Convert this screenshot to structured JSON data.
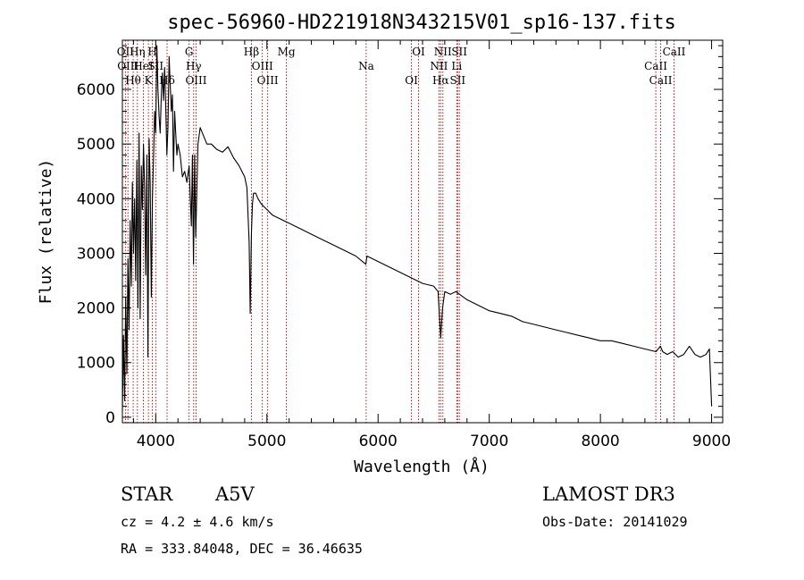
{
  "chart_data": {
    "type": "line",
    "title": "spec-56960-HD221918N343215V01_sp16-137.fits",
    "xlabel": "Wavelength (Å)",
    "ylabel": "Flux (relative)",
    "xlim": [
      3700,
      9100
    ],
    "ylim": [
      -100,
      6900
    ],
    "x_ticks": [
      4000,
      5000,
      6000,
      7000,
      8000,
      9000
    ],
    "y_ticks": [
      0,
      1000,
      2000,
      3000,
      4000,
      5000,
      6000
    ],
    "x_tick_labels": [
      "4000",
      "5000",
      "6000",
      "7000",
      "8000",
      "9000"
    ],
    "y_tick_labels": [
      "0",
      "1000",
      "2000",
      "3000",
      "4000",
      "5000",
      "6000"
    ],
    "grid": false,
    "series": [
      {
        "name": "spectrum",
        "x": [
          3700,
          3710,
          3720,
          3730,
          3740,
          3750,
          3760,
          3770,
          3780,
          3790,
          3800,
          3810,
          3820,
          3830,
          3840,
          3850,
          3860,
          3870,
          3880,
          3890,
          3900,
          3910,
          3920,
          3930,
          3940,
          3950,
          3960,
          3970,
          3980,
          3990,
          4000,
          4010,
          4020,
          4030,
          4040,
          4050,
          4060,
          4070,
          4080,
          4090,
          4100,
          4110,
          4120,
          4130,
          4140,
          4150,
          4160,
          4170,
          4180,
          4190,
          4200,
          4220,
          4240,
          4260,
          4280,
          4300,
          4320,
          4330,
          4340,
          4350,
          4360,
          4380,
          4400,
          4420,
          4440,
          4460,
          4480,
          4500,
          4550,
          4600,
          4650,
          4700,
          4750,
          4800,
          4820,
          4840,
          4850,
          4861,
          4870,
          4880,
          4900,
          4920,
          4950,
          5000,
          5050,
          5100,
          5150,
          5200,
          5250,
          5300,
          5400,
          5500,
          5600,
          5700,
          5800,
          5890,
          5900,
          6000,
          6100,
          6200,
          6300,
          6400,
          6500,
          6540,
          6563,
          6580,
          6600,
          6650,
          6700,
          6800,
          6900,
          7000,
          7100,
          7200,
          7300,
          7400,
          7500,
          7600,
          7700,
          7800,
          7900,
          8000,
          8100,
          8200,
          8300,
          8400,
          8500,
          8540,
          8560,
          8600,
          8650,
          8700,
          8750,
          8800,
          8850,
          8900,
          8950,
          8980,
          9000
        ],
        "values": [
          100,
          1500,
          300,
          2200,
          800,
          2900,
          1600,
          3600,
          2400,
          4300,
          3000,
          4000,
          2500,
          4700,
          2000,
          5200,
          1800,
          4600,
          3800,
          5000,
          4200,
          2600,
          4800,
          1100,
          5100,
          4300,
          2200,
          4000,
          4700,
          5600,
          5200,
          6800,
          6000,
          5500,
          5200,
          5900,
          6300,
          5800,
          6400,
          5700,
          4800,
          5300,
          6600,
          6100,
          5600,
          5900,
          4500,
          5600,
          5200,
          4800,
          5000,
          4800,
          4400,
          4500,
          4300,
          4600,
          3500,
          4800,
          2800,
          4800,
          3300,
          5000,
          5300,
          5200,
          5100,
          5000,
          5000,
          5000,
          4900,
          4850,
          4950,
          4750,
          4600,
          4400,
          4200,
          3200,
          1900,
          3400,
          3900,
          4100,
          4100,
          4000,
          3900,
          3800,
          3700,
          3650,
          3600,
          3550,
          3500,
          3450,
          3350,
          3250,
          3150,
          3050,
          2950,
          2800,
          2950,
          2850,
          2750,
          2650,
          2550,
          2450,
          2400,
          2300,
          1450,
          2000,
          2300,
          2250,
          2300,
          2150,
          2050,
          1950,
          1900,
          1850,
          1750,
          1700,
          1650,
          1600,
          1550,
          1500,
          1450,
          1400,
          1400,
          1350,
          1300,
          1250,
          1200,
          1300,
          1200,
          1150,
          1200,
          1100,
          1150,
          1300,
          1150,
          1100,
          1150,
          1250,
          200
        ]
      }
    ],
    "line_markers": [
      {
        "wavelength": 3727,
        "label": "OII"
      },
      {
        "wavelength": 3750,
        "label": "OIII"
      },
      {
        "wavelength": 3797,
        "label": "Hθ"
      },
      {
        "wavelength": 3835,
        "label": "Hη"
      },
      {
        "wavelength": 3889,
        "label": "HeI"
      },
      {
        "wavelength": 3934,
        "label": "K"
      },
      {
        "wavelength": 3970,
        "label": "H"
      },
      {
        "wavelength": 4000,
        "label": "SII"
      },
      {
        "wavelength": 4102,
        "label": "Hδ"
      },
      {
        "wavelength": 4300,
        "label": "G"
      },
      {
        "wavelength": 4341,
        "label": "Hγ"
      },
      {
        "wavelength": 4363,
        "label": "OIII"
      },
      {
        "wavelength": 4861,
        "label": "Hβ"
      },
      {
        "wavelength": 4959,
        "label": "OIII"
      },
      {
        "wavelength": 5007,
        "label": "OIII"
      },
      {
        "wavelength": 5175,
        "label": "Mg"
      },
      {
        "wavelength": 5893,
        "label": "Na"
      },
      {
        "wavelength": 6300,
        "label": "OI"
      },
      {
        "wavelength": 6364,
        "label": "OI"
      },
      {
        "wavelength": 6548,
        "label": "NII"
      },
      {
        "wavelength": 6563,
        "label": "Hα"
      },
      {
        "wavelength": 6583,
        "label": "NII"
      },
      {
        "wavelength": 6708,
        "label": "Li"
      },
      {
        "wavelength": 6716,
        "label": "SII"
      },
      {
        "wavelength": 6731,
        "label": "SII"
      },
      {
        "wavelength": 8498,
        "label": "CaII"
      },
      {
        "wavelength": 8542,
        "label": "CaII"
      },
      {
        "wavelength": 8662,
        "label": "CaII"
      }
    ],
    "line_marker_color": "#b00000"
  },
  "info": {
    "object_type": "STAR",
    "spectral_class": "A5V",
    "survey": "LAMOST DR3",
    "velocity": "cz = 4.2 ± 4.6 km/s",
    "obs_date": "Obs-Date: 20141029",
    "coords": "RA = 333.84048, DEC =  36.46635"
  }
}
